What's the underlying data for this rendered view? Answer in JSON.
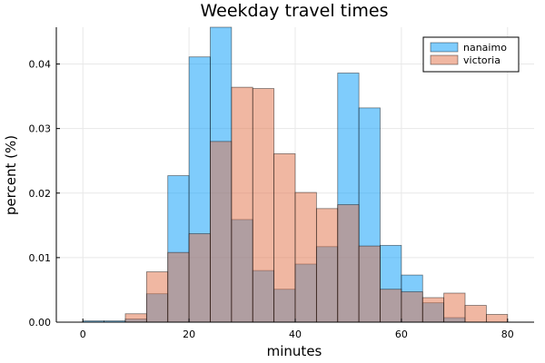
{
  "chart_data": {
    "type": "bar",
    "title": "Weekday travel times",
    "xlabel": "minutes",
    "ylabel": "percent (%)",
    "xlim": [
      -5,
      85
    ],
    "ylim": [
      0,
      0.0457
    ],
    "xticks": [
      0,
      20,
      40,
      60,
      80
    ],
    "yticks": [
      0.0,
      0.01,
      0.02,
      0.03,
      0.04
    ],
    "xtick_labels": [
      "0",
      "20",
      "40",
      "60",
      "80"
    ],
    "ytick_labels": [
      "0.00",
      "0.01",
      "0.02",
      "0.03",
      "0.04"
    ],
    "grid": true,
    "legend_position": "top-right",
    "bin_edges": [
      0,
      4,
      8,
      12,
      16,
      20,
      24,
      28,
      32,
      36,
      40,
      44,
      48,
      52,
      56,
      60,
      64,
      68,
      72,
      76,
      80
    ],
    "series": [
      {
        "name": "nanaimo",
        "color": "#009AFA",
        "values": [
          0.0002,
          0.0002,
          0.0005,
          0.0044,
          0.0227,
          0.0411,
          0.0457,
          0.0159,
          0.008,
          0.0051,
          0.009,
          0.0117,
          0.0386,
          0.0332,
          0.0119,
          0.0073,
          0.003,
          0.0007,
          0,
          0
        ]
      },
      {
        "name": "victoria",
        "color": "#E26F46",
        "values": [
          0,
          0,
          0.0013,
          0.0078,
          0.0108,
          0.0137,
          0.028,
          0.0364,
          0.0362,
          0.0261,
          0.0201,
          0.0176,
          0.0182,
          0.0118,
          0.0051,
          0.0047,
          0.0038,
          0.0045,
          0.0026,
          0.0012
        ]
      }
    ]
  }
}
